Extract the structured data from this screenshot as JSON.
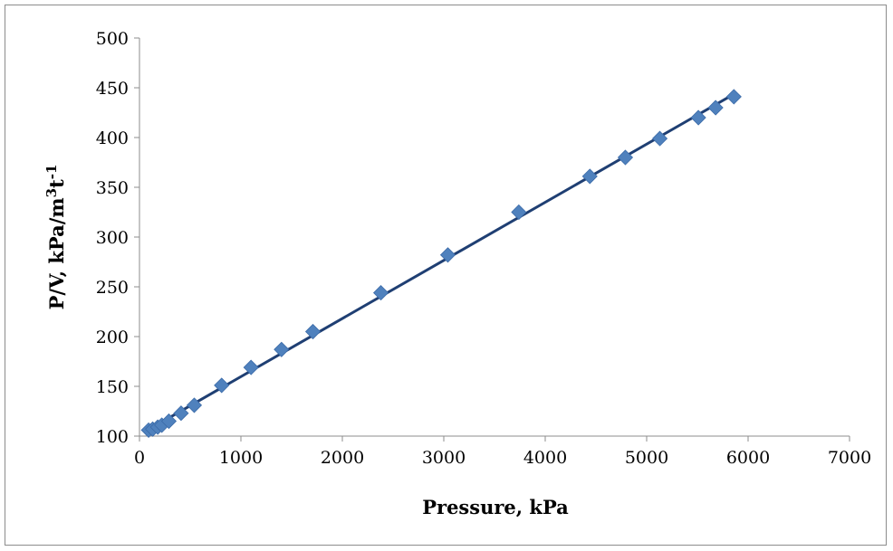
{
  "chart_data": {
    "type": "scatter",
    "title": "",
    "xlabel": "Pressure, kPa",
    "ylabel_main": "P/V, kPa/m",
    "ylabel_sup1": "3",
    "ylabel_mid": "t",
    "ylabel_sup2": "-1",
    "xlim": [
      0,
      7000
    ],
    "ylim": [
      100,
      500
    ],
    "x_ticks": [
      "0",
      "1000",
      "2000",
      "3000",
      "4000",
      "5000",
      "6000",
      "7000"
    ],
    "y_ticks": [
      "100",
      "150",
      "200",
      "250",
      "300",
      "350",
      "400",
      "450",
      "500"
    ],
    "grid": false,
    "legend": "none",
    "marker": "diamond",
    "marker_color": "#4F81BD",
    "trendline_color": "#1F3F73",
    "trendline": {
      "x": [
        80,
        5850
      ],
      "y": [
        106,
        443
      ]
    },
    "series": [
      {
        "x": [
          90,
          130,
          180,
          220,
          290,
          410,
          540,
          810,
          1100,
          1400,
          1710,
          2380,
          3040,
          3740,
          4440,
          4790,
          5130,
          5510,
          5680,
          5860
        ],
        "y": [
          106,
          107,
          109,
          111,
          115,
          123,
          131,
          151,
          169,
          187,
          205,
          244,
          282,
          325,
          361,
          380,
          399,
          420,
          430,
          441
        ]
      }
    ]
  }
}
